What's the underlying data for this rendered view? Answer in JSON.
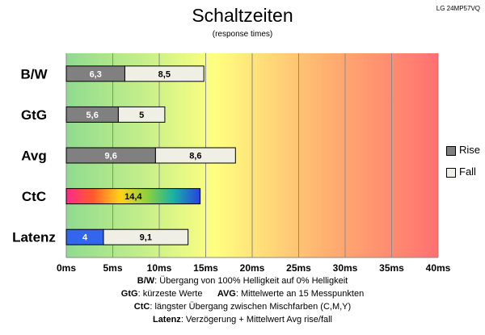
{
  "header": {
    "title": "Schaltzeiten",
    "subtitle": "(response times)",
    "model": "LG 24MP57VQ"
  },
  "legend": {
    "rise": "Rise",
    "fall": "Fall"
  },
  "colors": {
    "rise": "#808080",
    "fall": "#efefe5",
    "latency": "#3366ee",
    "gradient_bg": [
      "#8fdb8f",
      "#ffff80",
      "#ff7070"
    ]
  },
  "footnotes": [
    {
      "key": "B/W",
      "text": ":  Übergang von 100% Helligkeit auf 0% Helligkeit"
    },
    {
      "key": "GtG",
      "text": ": kürzeste  Werte",
      "key2": "AVG",
      "text2": ": Mittelwerte  an 15 Messpunkten"
    },
    {
      "key": "CtC",
      "text": ": längster Übergang  zwischen Mischfarben  (C,M,Y)"
    },
    {
      "key": "Latenz",
      "text": ": Verzögerung  + Mittelwert  Avg rise/fall"
    }
  ],
  "chart_data": {
    "type": "bar",
    "orientation": "horizontal",
    "stacked": true,
    "title": "Schaltzeiten",
    "subtitle": "(response times)",
    "categories": [
      "B/W",
      "GtG",
      "Avg",
      "CtC",
      "Latenz"
    ],
    "series": [
      {
        "name": "Rise",
        "values": [
          6.3,
          5.6,
          9.6,
          null,
          null
        ],
        "labels": [
          "6,3",
          "5,6",
          "9,6",
          null,
          null
        ]
      },
      {
        "name": "Fall",
        "values": [
          8.5,
          5,
          8.6,
          null,
          9.1
        ],
        "labels": [
          "8,5",
          "5",
          "8,6",
          null,
          "9,1"
        ]
      }
    ],
    "extra_bars": [
      {
        "category": "CtC",
        "value": 14.4,
        "label": "14,4",
        "style": "rainbow"
      },
      {
        "category": "Latenz",
        "value": 4,
        "label": "4",
        "style": "latency"
      }
    ],
    "xlim": [
      0,
      40
    ],
    "xticks": [
      "0ms",
      "5ms",
      "10ms",
      "15ms",
      "20ms",
      "25ms",
      "30ms",
      "35ms",
      "40ms"
    ],
    "grid": true,
    "legend_position": "right"
  }
}
